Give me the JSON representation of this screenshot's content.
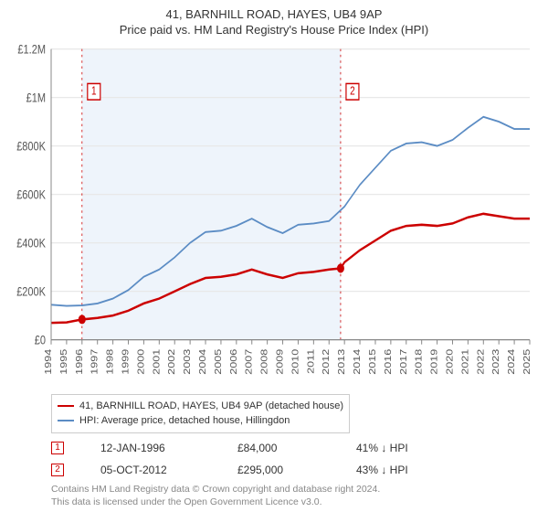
{
  "title_main": "41, BARNHILL ROAD, HAYES, UB4 9AP",
  "title_sub": "Price paid vs. HM Land Registry's House Price Index (HPI)",
  "chart": {
    "type": "line",
    "background_color": "#ffffff",
    "shaded_band_color": "#eef4fb",
    "grid_color": "#e8e8e8",
    "axis_color": "#888888",
    "ylim": [
      0,
      1200000
    ],
    "ytick_step": 200000,
    "ytick_labels": [
      "£0",
      "£200K",
      "£400K",
      "£600K",
      "£800K",
      "£1M",
      "£1.2M"
    ],
    "x_years": [
      1994,
      1995,
      1996,
      1997,
      1998,
      1999,
      2000,
      2001,
      2002,
      2003,
      2004,
      2005,
      2006,
      2007,
      2008,
      2009,
      2010,
      2011,
      2012,
      2013,
      2014,
      2015,
      2016,
      2017,
      2018,
      2019,
      2020,
      2021,
      2022,
      2023,
      2024,
      2025
    ],
    "shaded_from_year": 1996,
    "shaded_to_year": 2012.75,
    "series": [
      {
        "name": "price_paid",
        "color": "#cc0000",
        "line_width": 2,
        "points": [
          [
            1994,
            70000
          ],
          [
            1995,
            72000
          ],
          [
            1996,
            84000
          ],
          [
            1997,
            90000
          ],
          [
            1998,
            100000
          ],
          [
            1999,
            120000
          ],
          [
            2000,
            150000
          ],
          [
            2001,
            170000
          ],
          [
            2002,
            200000
          ],
          [
            2003,
            230000
          ],
          [
            2004,
            255000
          ],
          [
            2005,
            260000
          ],
          [
            2006,
            270000
          ],
          [
            2007,
            290000
          ],
          [
            2008,
            270000
          ],
          [
            2009,
            255000
          ],
          [
            2010,
            275000
          ],
          [
            2011,
            280000
          ],
          [
            2012,
            290000
          ],
          [
            2012.75,
            295000
          ],
          [
            2013,
            320000
          ],
          [
            2014,
            370000
          ],
          [
            2015,
            410000
          ],
          [
            2016,
            450000
          ],
          [
            2017,
            470000
          ],
          [
            2018,
            475000
          ],
          [
            2019,
            470000
          ],
          [
            2020,
            480000
          ],
          [
            2021,
            505000
          ],
          [
            2022,
            520000
          ],
          [
            2023,
            510000
          ],
          [
            2024,
            500000
          ],
          [
            2025,
            500000
          ]
        ]
      },
      {
        "name": "hpi",
        "color": "#5b8cc4",
        "line_width": 1.5,
        "points": [
          [
            1994,
            145000
          ],
          [
            1995,
            140000
          ],
          [
            1996,
            142000
          ],
          [
            1997,
            150000
          ],
          [
            1998,
            170000
          ],
          [
            1999,
            205000
          ],
          [
            2000,
            260000
          ],
          [
            2001,
            290000
          ],
          [
            2002,
            340000
          ],
          [
            2003,
            400000
          ],
          [
            2004,
            445000
          ],
          [
            2005,
            450000
          ],
          [
            2006,
            470000
          ],
          [
            2007,
            500000
          ],
          [
            2008,
            465000
          ],
          [
            2009,
            440000
          ],
          [
            2010,
            475000
          ],
          [
            2011,
            480000
          ],
          [
            2012,
            490000
          ],
          [
            2013,
            550000
          ],
          [
            2014,
            640000
          ],
          [
            2015,
            710000
          ],
          [
            2016,
            780000
          ],
          [
            2017,
            810000
          ],
          [
            2018,
            815000
          ],
          [
            2019,
            800000
          ],
          [
            2020,
            825000
          ],
          [
            2021,
            875000
          ],
          [
            2022,
            920000
          ],
          [
            2023,
            900000
          ],
          [
            2024,
            870000
          ],
          [
            2025,
            870000
          ]
        ]
      }
    ],
    "sale_markers": [
      {
        "n": "1",
        "year": 1996,
        "value": 84000
      },
      {
        "n": "2",
        "year": 2012.75,
        "value": 295000
      }
    ],
    "sale_dot_color": "#cc0000",
    "label_fontsize": 11
  },
  "legend": {
    "border_color": "#cccccc",
    "items": [
      {
        "color": "#cc0000",
        "label": "41, BARNHILL ROAD, HAYES, UB4 9AP (detached house)"
      },
      {
        "color": "#5b8cc4",
        "label": "HPI: Average price, detached house, Hillingdon"
      }
    ]
  },
  "sales": [
    {
      "n": "1",
      "date": "12-JAN-1996",
      "price": "£84,000",
      "pct": "41% ↓ HPI"
    },
    {
      "n": "2",
      "date": "05-OCT-2012",
      "price": "£295,000",
      "pct": "43% ↓ HPI"
    }
  ],
  "footer_line1": "Contains HM Land Registry data © Crown copyright and database right 2024.",
  "footer_line2": "This data is licensed under the Open Government Licence v3.0."
}
